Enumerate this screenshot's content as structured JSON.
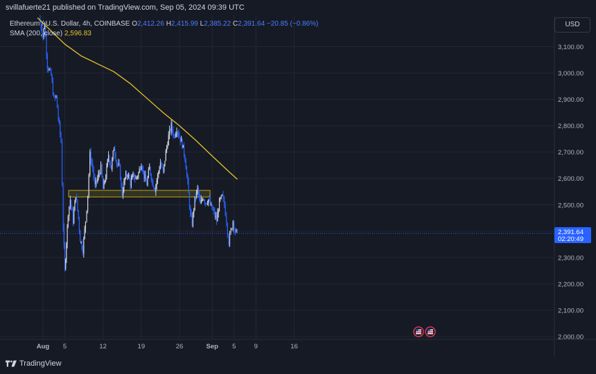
{
  "header": {
    "publisher_text": "svillafuerte21 published on TradingView.com, Sep 05, 2024 09:39 UTC"
  },
  "legend": {
    "symbol": "Ethereum / U.S. Dollar, 4h, COINBASE",
    "open_label": "O",
    "open": "2,412.26",
    "high_label": "H",
    "high": "2,415.99",
    "low_label": "L",
    "low": "2,385.22",
    "close_label": "C",
    "close": "2,391.64",
    "change": "−20.85 (−0.86%)",
    "sma_label": "SMA (200, close)",
    "sma_value": "2,596.83"
  },
  "currency_button": "USD",
  "price_tag": {
    "price": "2,391.64",
    "countdown": "02:20:49"
  },
  "footer": {
    "brand": "TradingView"
  },
  "colors": {
    "up": "#d1d4dc",
    "down": "#2962ff",
    "sma": "#e6c229",
    "zone": "#b8a51c",
    "background": "#161a25",
    "grid": "#232734"
  },
  "chart_data": {
    "type": "candlestick",
    "timeframe": "4h",
    "y_ticks": [
      "3,100.00",
      "3,000.00",
      "2,900.00",
      "2,800.00",
      "2,700.00",
      "2,600.00",
      "2,500.00",
      "2,400.00",
      "2,300.00",
      "2,200.00",
      "2,100.00",
      "2,000.00"
    ],
    "y_tick_values": [
      3100,
      3000,
      2900,
      2800,
      2700,
      2600,
      2500,
      2400,
      2300,
      2200,
      2100,
      2000
    ],
    "ylim": [
      2000,
      3200
    ],
    "x_ticks": [
      "Aug",
      "5",
      "12",
      "19",
      "26",
      "Sep",
      "5",
      "9",
      "16"
    ],
    "x_tick_day_index": [
      1,
      5,
      12,
      19,
      26,
      32,
      36,
      40,
      47
    ],
    "last_price": 2391.64,
    "support_zone": {
      "from_day": 5.7,
      "to_day": 31.6,
      "low": 2530,
      "high": 2555
    },
    "sma": [
      {
        "d": 0,
        "v": 3210
      },
      {
        "d": 2,
        "v": 3170
      },
      {
        "d": 5,
        "v": 3110
      },
      {
        "d": 8,
        "v": 3065
      },
      {
        "d": 11,
        "v": 3035
      },
      {
        "d": 14,
        "v": 3005
      },
      {
        "d": 17,
        "v": 2960
      },
      {
        "d": 20,
        "v": 2905
      },
      {
        "d": 23,
        "v": 2850
      },
      {
        "d": 26,
        "v": 2800
      },
      {
        "d": 29,
        "v": 2745
      },
      {
        "d": 32,
        "v": 2685
      },
      {
        "d": 35,
        "v": 2627
      },
      {
        "d": 36.6,
        "v": 2596.83
      }
    ],
    "price_path": [
      {
        "d": 0.3,
        "v": 3210
      },
      {
        "d": 1.0,
        "v": 3140
      },
      {
        "d": 1.3,
        "v": 3190
      },
      {
        "d": 1.8,
        "v": 3030
      },
      {
        "d": 2.5,
        "v": 2990
      },
      {
        "d": 3.0,
        "v": 2900
      },
      {
        "d": 3.4,
        "v": 2910
      },
      {
        "d": 3.8,
        "v": 2830
      },
      {
        "d": 4.3,
        "v": 2740
      },
      {
        "d": 4.7,
        "v": 2420
      },
      {
        "d": 5.0,
        "v": 2250
      },
      {
        "d": 5.3,
        "v": 2360
      },
      {
        "d": 5.6,
        "v": 2470
      },
      {
        "d": 6.0,
        "v": 2520
      },
      {
        "d": 6.5,
        "v": 2440
      },
      {
        "d": 7.0,
        "v": 2540
      },
      {
        "d": 7.5,
        "v": 2450
      },
      {
        "d": 7.8,
        "v": 2370
      },
      {
        "d": 8.3,
        "v": 2330
      },
      {
        "d": 8.8,
        "v": 2440
      },
      {
        "d": 9.2,
        "v": 2540
      },
      {
        "d": 9.6,
        "v": 2690
      },
      {
        "d": 10.1,
        "v": 2640
      },
      {
        "d": 10.5,
        "v": 2570
      },
      {
        "d": 11.0,
        "v": 2600
      },
      {
        "d": 11.6,
        "v": 2640
      },
      {
        "d": 12.0,
        "v": 2560
      },
      {
        "d": 12.5,
        "v": 2610
      },
      {
        "d": 13.0,
        "v": 2690
      },
      {
        "d": 13.5,
        "v": 2640
      },
      {
        "d": 14.0,
        "v": 2720
      },
      {
        "d": 14.5,
        "v": 2660
      },
      {
        "d": 15.0,
        "v": 2640
      },
      {
        "d": 15.5,
        "v": 2540
      },
      {
        "d": 16.0,
        "v": 2600
      },
      {
        "d": 16.5,
        "v": 2620
      },
      {
        "d": 17.0,
        "v": 2580
      },
      {
        "d": 17.5,
        "v": 2610
      },
      {
        "d": 18.0,
        "v": 2600
      },
      {
        "d": 18.5,
        "v": 2620
      },
      {
        "d": 19.0,
        "v": 2660
      },
      {
        "d": 19.5,
        "v": 2610
      },
      {
        "d": 20.0,
        "v": 2580
      },
      {
        "d": 20.5,
        "v": 2640
      },
      {
        "d": 21.0,
        "v": 2590
      },
      {
        "d": 21.5,
        "v": 2560
      },
      {
        "d": 22.0,
        "v": 2610
      },
      {
        "d": 22.5,
        "v": 2660
      },
      {
        "d": 23.0,
        "v": 2620
      },
      {
        "d": 23.5,
        "v": 2700
      },
      {
        "d": 24.0,
        "v": 2760
      },
      {
        "d": 24.5,
        "v": 2800
      },
      {
        "d": 25.0,
        "v": 2760
      },
      {
        "d": 25.5,
        "v": 2790
      },
      {
        "d": 26.0,
        "v": 2760
      },
      {
        "d": 26.5,
        "v": 2730
      },
      {
        "d": 27.0,
        "v": 2680
      },
      {
        "d": 27.5,
        "v": 2580
      },
      {
        "d": 28.0,
        "v": 2460
      },
      {
        "d": 28.3,
        "v": 2430
      },
      {
        "d": 28.8,
        "v": 2520
      },
      {
        "d": 29.3,
        "v": 2560
      },
      {
        "d": 29.8,
        "v": 2500
      },
      {
        "d": 30.3,
        "v": 2530
      },
      {
        "d": 30.8,
        "v": 2510
      },
      {
        "d": 31.3,
        "v": 2520
      },
      {
        "d": 31.8,
        "v": 2490
      },
      {
        "d": 32.3,
        "v": 2470
      },
      {
        "d": 32.8,
        "v": 2440
      },
      {
        "d": 33.3,
        "v": 2510
      },
      {
        "d": 33.8,
        "v": 2530
      },
      {
        "d": 34.2,
        "v": 2500
      },
      {
        "d": 34.6,
        "v": 2440
      },
      {
        "d": 35.0,
        "v": 2360
      },
      {
        "d": 35.4,
        "v": 2400
      },
      {
        "d": 35.8,
        "v": 2440
      },
      {
        "d": 36.2,
        "v": 2400
      },
      {
        "d": 36.6,
        "v": 2391.64
      }
    ]
  }
}
